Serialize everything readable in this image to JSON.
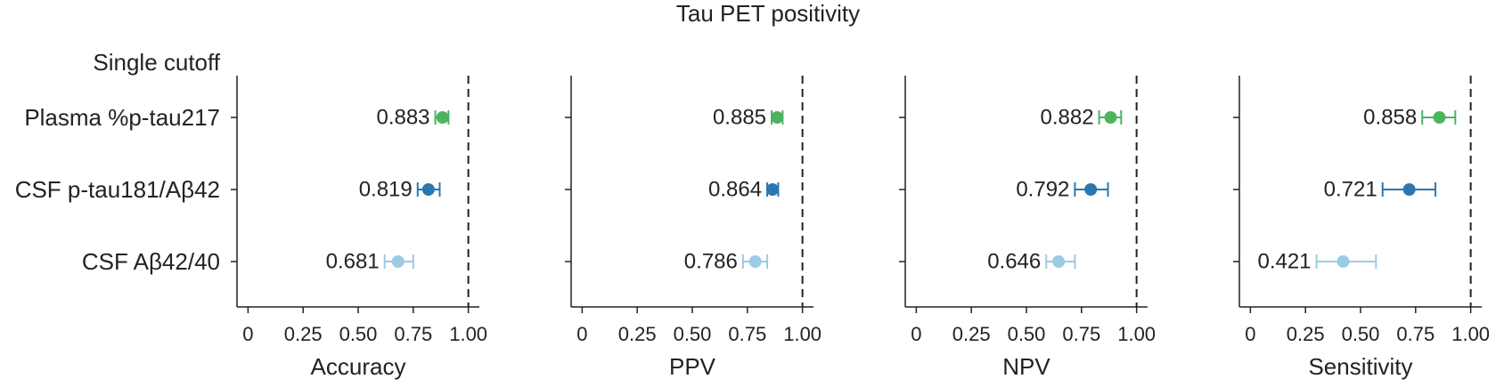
{
  "title": "Tau PET positivity",
  "group_label": "Single cutoff",
  "colors": {
    "green": "#4db35e",
    "blue": "#2a78b2",
    "lightblue": "#9ccbe4",
    "axis": "#222222",
    "text": "#222222"
  },
  "chart_data": [
    {
      "type": "scatter",
      "subtype": "forest-plot",
      "xlabel": "Accuracy",
      "xlim": [
        -0.05,
        1.05
      ],
      "xticks": [
        0,
        0.25,
        0.5,
        0.75,
        1.0
      ],
      "xtick_labels": [
        "0",
        "0.25",
        "0.50",
        "0.75",
        "1.00"
      ],
      "reference_line": 1.0,
      "categories": [
        "Plasma %p-tau217",
        "CSF p-tau181/Aβ42",
        "CSF Aβ42/40"
      ],
      "series": [
        {
          "name": "Plasma %p-tau217",
          "value": 0.883,
          "ci": [
            0.85,
            0.91
          ],
          "color": "#4db35e",
          "label": "0.883"
        },
        {
          "name": "CSF p-tau181/Aβ42",
          "value": 0.819,
          "ci": [
            0.77,
            0.87
          ],
          "color": "#2a78b2",
          "label": "0.819"
        },
        {
          "name": "CSF Aβ42/40",
          "value": 0.681,
          "ci": [
            0.62,
            0.75
          ],
          "color": "#9ccbe4",
          "label": "0.681"
        }
      ]
    },
    {
      "type": "scatter",
      "subtype": "forest-plot",
      "xlabel": "PPV",
      "xlim": [
        -0.05,
        1.05
      ],
      "xticks": [
        0,
        0.25,
        0.5,
        0.75,
        1.0
      ],
      "xtick_labels": [
        "0",
        "0.25",
        "0.50",
        "0.75",
        "1.00"
      ],
      "reference_line": 1.0,
      "categories": [
        "Plasma %p-tau217",
        "CSF p-tau181/Aβ42",
        "CSF Aβ42/40"
      ],
      "series": [
        {
          "name": "Plasma %p-tau217",
          "value": 0.885,
          "ci": [
            0.86,
            0.91
          ],
          "color": "#4db35e",
          "label": "0.885"
        },
        {
          "name": "CSF p-tau181/Aβ42",
          "value": 0.864,
          "ci": [
            0.84,
            0.89
          ],
          "color": "#2a78b2",
          "label": "0.864"
        },
        {
          "name": "CSF Aβ42/40",
          "value": 0.786,
          "ci": [
            0.73,
            0.84
          ],
          "color": "#9ccbe4",
          "label": "0.786"
        }
      ]
    },
    {
      "type": "scatter",
      "subtype": "forest-plot",
      "xlabel": "NPV",
      "xlim": [
        -0.05,
        1.05
      ],
      "xticks": [
        0,
        0.25,
        0.5,
        0.75,
        1.0
      ],
      "xtick_labels": [
        "0",
        "0.25",
        "0.50",
        "0.75",
        "1.00"
      ],
      "reference_line": 1.0,
      "categories": [
        "Plasma %p-tau217",
        "CSF p-tau181/Aβ42",
        "CSF Aβ42/40"
      ],
      "series": [
        {
          "name": "Plasma %p-tau217",
          "value": 0.882,
          "ci": [
            0.83,
            0.93
          ],
          "color": "#4db35e",
          "label": "0.882"
        },
        {
          "name": "CSF p-tau181/Aβ42",
          "value": 0.792,
          "ci": [
            0.72,
            0.87
          ],
          "color": "#2a78b2",
          "label": "0.792"
        },
        {
          "name": "CSF Aβ42/40",
          "value": 0.646,
          "ci": [
            0.59,
            0.72
          ],
          "color": "#9ccbe4",
          "label": "0.646"
        }
      ]
    },
    {
      "type": "scatter",
      "subtype": "forest-plot",
      "xlabel": "Sensitivity",
      "xlim": [
        -0.05,
        1.05
      ],
      "xticks": [
        0,
        0.25,
        0.5,
        0.75,
        1.0
      ],
      "xtick_labels": [
        "0",
        "0.25",
        "0.50",
        "0.75",
        "1.00"
      ],
      "reference_line": 1.0,
      "categories": [
        "Plasma %p-tau217",
        "CSF p-tau181/Aβ42",
        "CSF Aβ42/40"
      ],
      "series": [
        {
          "name": "Plasma %p-tau217",
          "value": 0.858,
          "ci": [
            0.78,
            0.93
          ],
          "color": "#4db35e",
          "label": "0.858"
        },
        {
          "name": "CSF p-tau181/Aβ42",
          "value": 0.721,
          "ci": [
            0.6,
            0.84
          ],
          "color": "#2a78b2",
          "label": "0.721"
        },
        {
          "name": "CSF Aβ42/40",
          "value": 0.421,
          "ci": [
            0.3,
            0.57
          ],
          "color": "#9ccbe4",
          "label": "0.421"
        }
      ]
    }
  ]
}
